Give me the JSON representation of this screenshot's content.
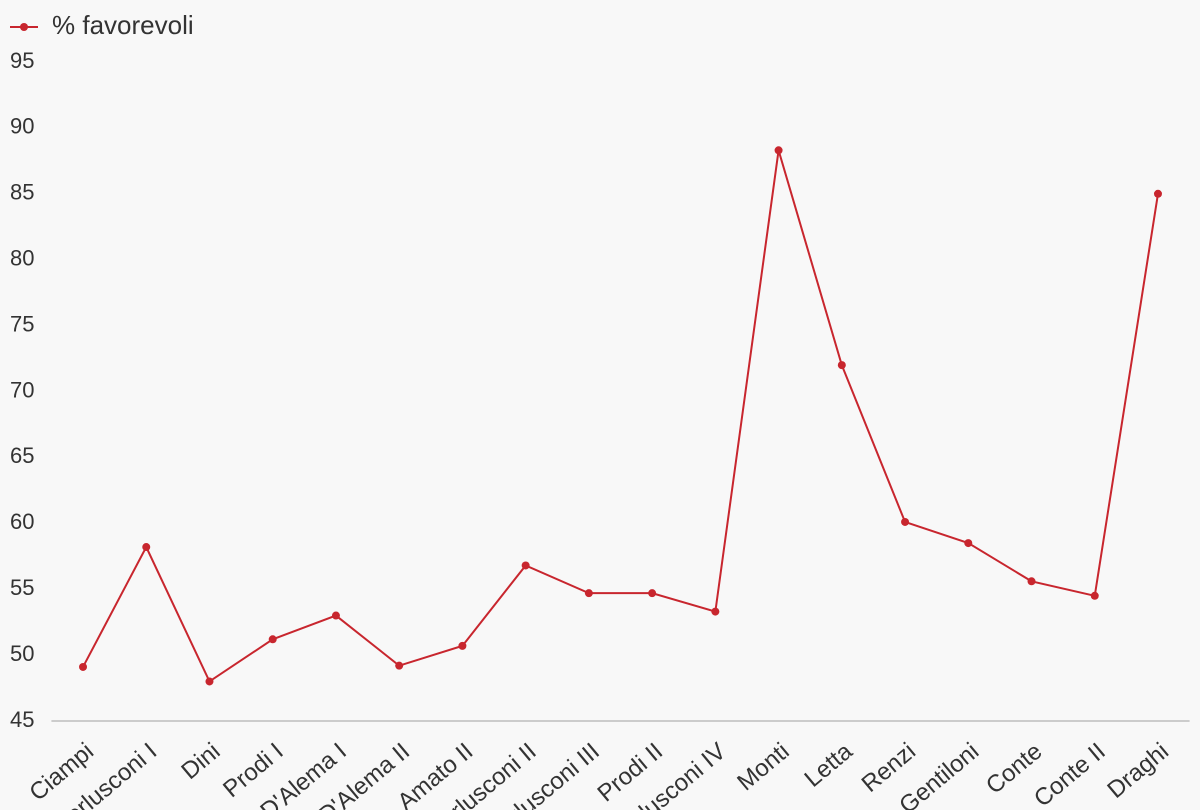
{
  "chart_data": {
    "type": "line",
    "categories": [
      "Ciampi",
      "Berlusconi I",
      "Dini",
      "Prodi I",
      "D'Alema I",
      "D'Alema II",
      "Amato II",
      "Berlusconi II",
      "Berlusconi III",
      "Prodi II",
      "Berlusconi IV",
      "Monti",
      "Letta",
      "Renzi",
      "Gentiloni",
      "Conte",
      "Conte II",
      "Draghi"
    ],
    "series": [
      {
        "name": "% favorevoli",
        "color": "#c8262e",
        "values": [
          49.1,
          58.2,
          48.0,
          51.2,
          53.0,
          49.2,
          50.7,
          56.8,
          54.7,
          54.7,
          53.3,
          88.3,
          72.0,
          60.1,
          58.5,
          55.6,
          54.5,
          85.0
        ]
      }
    ],
    "ylim": [
      45,
      95
    ],
    "yticks": [
      45,
      50,
      55,
      60,
      65,
      70,
      75,
      80,
      85,
      90,
      95
    ],
    "grid": false,
    "legend": "top-left"
  }
}
